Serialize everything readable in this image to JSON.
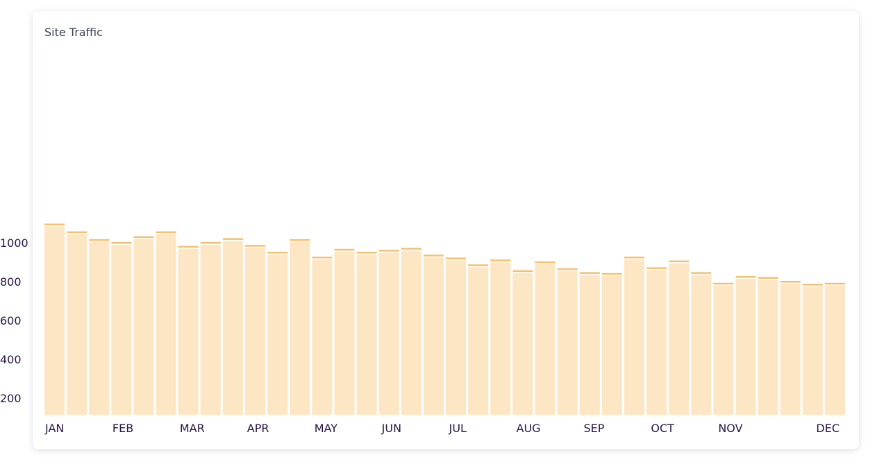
{
  "card": {
    "title": "Site Traffic"
  },
  "chart_data": {
    "type": "bar",
    "title": "Site Traffic",
    "xlabel": "",
    "ylabel": "",
    "ylim": [
      120,
      1120
    ],
    "yticks": [
      200,
      400,
      600,
      800,
      1000
    ],
    "ytick_labels": [
      "200",
      "400",
      "600",
      "800",
      "1000"
    ],
    "grid": false,
    "month_labels": [
      "JAN",
      "FEB",
      "MAR",
      "APR",
      "MAY",
      "JUN",
      "JUL",
      "AUG",
      "SEP",
      "OCT",
      "NOV",
      "DEC"
    ],
    "colors": {
      "bar_fill": "#fde6c4",
      "bar_cap": "#f6c06a",
      "tick_text": "#2a1546"
    },
    "values": [
      1095,
      1055,
      1015,
      1000,
      1030,
      1055,
      980,
      1000,
      1020,
      985,
      950,
      1015,
      925,
      965,
      950,
      960,
      970,
      935,
      920,
      885,
      910,
      855,
      900,
      865,
      845,
      840,
      925,
      870,
      905,
      845,
      790,
      825,
      820,
      800,
      785,
      790
    ]
  }
}
